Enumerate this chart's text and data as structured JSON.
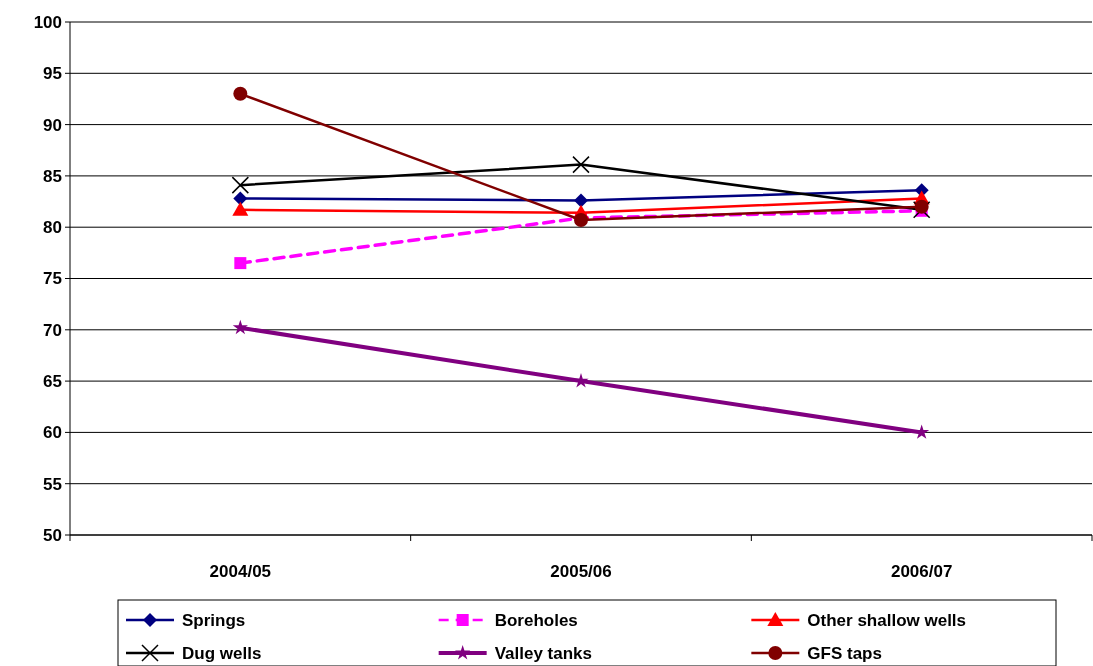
{
  "chart_data": {
    "type": "line",
    "categories": [
      "2004/05",
      "2005/06",
      "2006/07"
    ],
    "ylim": [
      50,
      100
    ],
    "yticks": [
      50,
      55,
      60,
      65,
      70,
      75,
      80,
      85,
      90,
      95,
      100
    ],
    "grid": "y",
    "legend": "bottom",
    "series": [
      {
        "name": "Springs",
        "color": "#000080",
        "marker": "diamond",
        "values": [
          82.8,
          82.6,
          83.6
        ]
      },
      {
        "name": "Boreholes",
        "color": "#ff00ff",
        "marker": "square",
        "line_style": "dashed",
        "values": [
          76.5,
          80.9,
          81.6
        ]
      },
      {
        "name": "Other shallow wells",
        "color": "#ff0000",
        "marker": "triangle",
        "values": [
          81.7,
          81.4,
          82.8
        ]
      },
      {
        "name": "Dug wells",
        "color": "#000000",
        "marker": "cross",
        "values": [
          84.1,
          86.1,
          81.7
        ]
      },
      {
        "name": "Valley tanks",
        "color": "#800080",
        "marker": "star",
        "values": [
          70.2,
          65.0,
          60.0
        ]
      },
      {
        "name": "GFS taps",
        "color": "#800000",
        "marker": "circle",
        "values": [
          93.0,
          80.7,
          82.0
        ]
      }
    ]
  }
}
